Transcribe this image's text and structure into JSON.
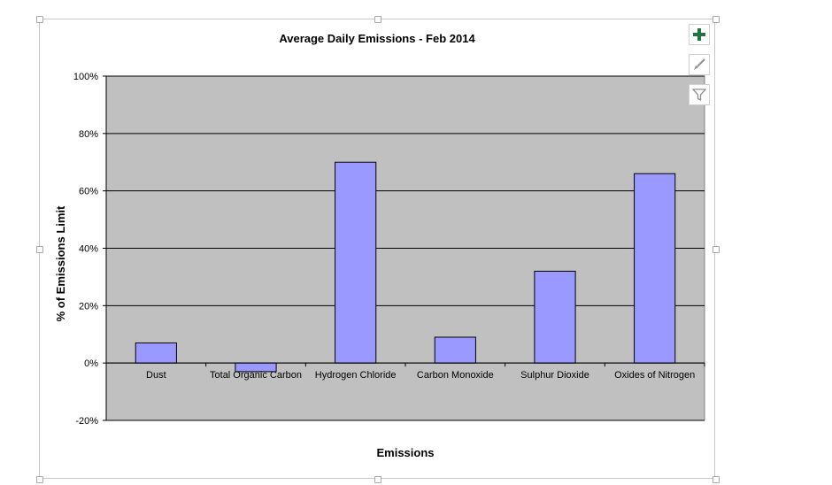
{
  "chart_data": {
    "type": "bar",
    "title": "Average Daily Emissions - Feb 2014",
    "xlabel": "Emissions",
    "ylabel": "% of Emissions Limit",
    "categories": [
      "Dust",
      "Total Organic Carbon",
      "Hydrogen Chloride",
      "Carbon Monoxide",
      "Sulphur Dioxide",
      "Oxides of Nitrogen"
    ],
    "values": [
      0.07,
      -0.03,
      0.7,
      0.09,
      0.32,
      0.66
    ],
    "ylim": [
      -0.2,
      1.0
    ],
    "yticks": [
      1.0,
      0.8,
      0.6,
      0.4,
      0.2,
      0.0,
      -0.2
    ],
    "ytick_labels": [
      "100%",
      "80%",
      "60%",
      "40%",
      "20%",
      "0%",
      "-20%"
    ],
    "grid": true,
    "colors": {
      "bar_fill": "#9999ff",
      "bar_stroke": "#000000",
      "plot_bg": "#c0c0c0",
      "gridline": "#000000"
    }
  },
  "toolbar": {
    "chart_elements_icon": "plus-icon",
    "chart_styles_icon": "brush-icon",
    "chart_filters_icon": "funnel-icon",
    "accent": "#217346"
  }
}
